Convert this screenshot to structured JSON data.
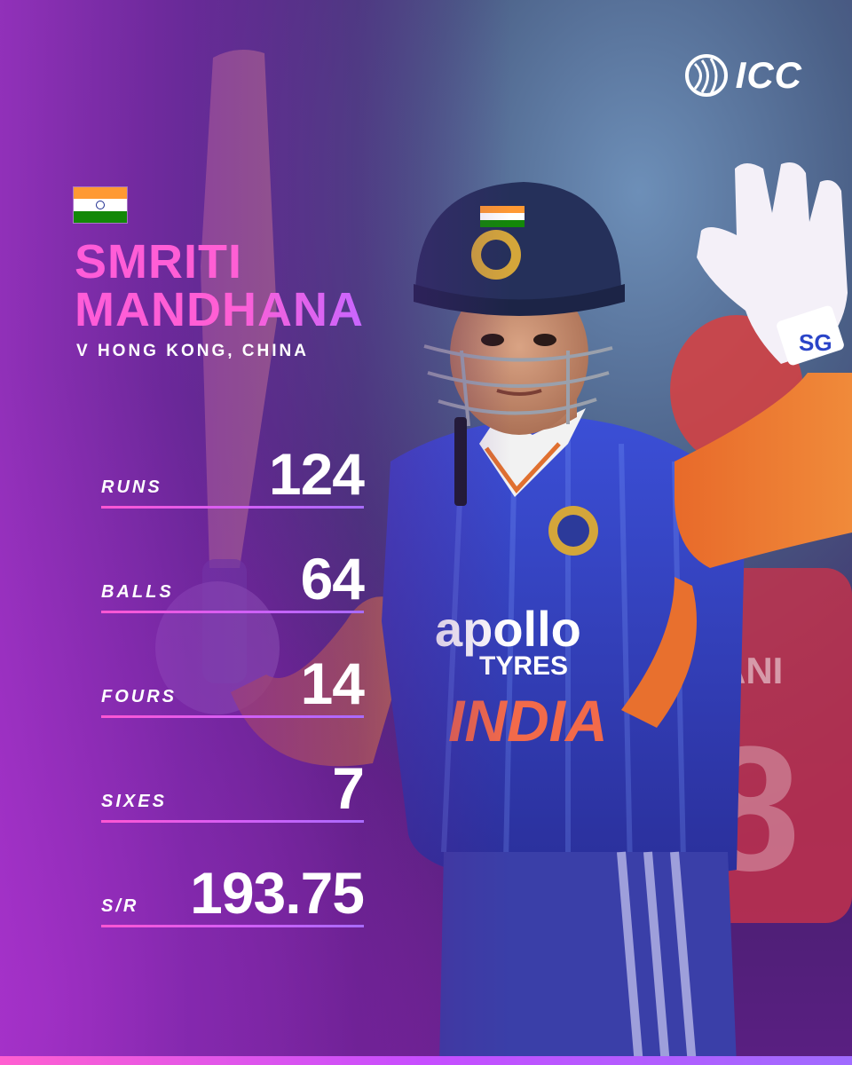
{
  "brand": {
    "logo_text": "ICC"
  },
  "player": {
    "flag": "india-flag",
    "first_name": "SMRITI",
    "last_name": "MANDHANA",
    "opponent": "V HONG KONG, CHINA"
  },
  "stats": [
    {
      "label": "RUNS",
      "value": "124"
    },
    {
      "label": "BALLS",
      "value": "64"
    },
    {
      "label": "FOURS",
      "value": "14"
    },
    {
      "label": "SIXES",
      "value": "7"
    },
    {
      "label": "S/R",
      "value": "193.75"
    }
  ],
  "colors": {
    "accent_pink": "#ff5cd8",
    "accent_purple": "#a86bff",
    "flag_saffron": "#ff9933",
    "flag_green": "#138808"
  }
}
